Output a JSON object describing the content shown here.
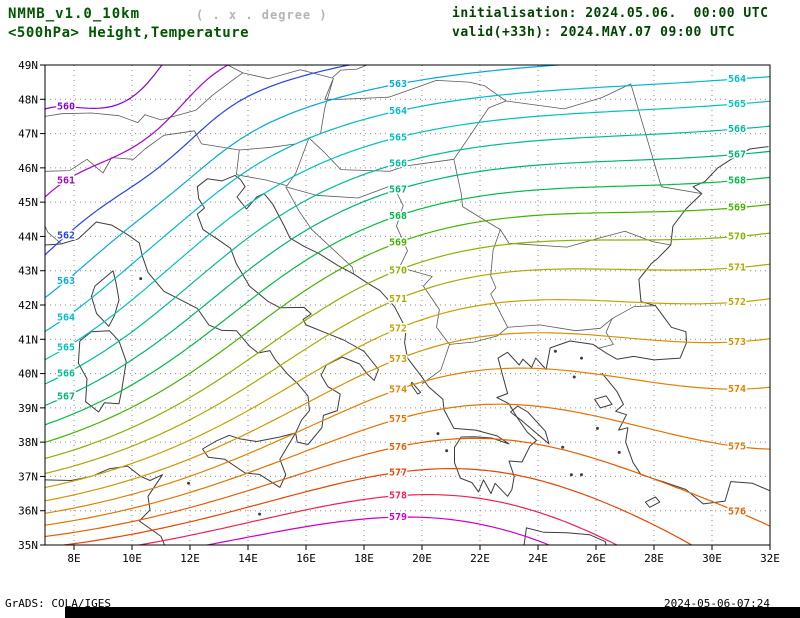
{
  "header": {
    "model": "NMMB_v1.0_10km",
    "resolution_note": "( . x . degree )",
    "title": "<500hPa> Height,Temperature",
    "init": "initialisation: 2024.05.06.  00:00 UTC",
    "valid": "valid(+33h): 2024.MAY.07 09:00 UTC"
  },
  "footer": {
    "left": "GrADS: COLA/IGES",
    "right": "2024-05-06-07:24"
  },
  "chart_data": {
    "type": "contour",
    "field": "500 hPa geopotential height",
    "title": "<500hPa> Height,Temperature",
    "levels": [
      560,
      561,
      562,
      563,
      564,
      565,
      566,
      567,
      568,
      569,
      570,
      571,
      572,
      573,
      574,
      575,
      576,
      577,
      578,
      579
    ],
    "level_colors": [
      "#8800dd",
      "#aa00cc",
      "#2244ee",
      "#00aadd",
      "#00bbcc",
      "#00c4b4",
      "#00bb99",
      "#00b377",
      "#00bb44",
      "#44b300",
      "#88b300",
      "#aaaa00",
      "#c4a300",
      "#d49200",
      "#e08200",
      "#e57300",
      "#e55f00",
      "#e54400",
      "#ee2255",
      "#cc00cc"
    ],
    "lat_ticks": [
      "49N",
      "48N",
      "47N",
      "46N",
      "45N",
      "44N",
      "43N",
      "42N",
      "41N",
      "40N",
      "39N",
      "38N",
      "37N",
      "36N",
      "35N"
    ],
    "lon_ticks": [
      "8E",
      "10E",
      "12E",
      "14E",
      "16E",
      "18E",
      "20E",
      "22E",
      "24E",
      "26E",
      "28E",
      "30E",
      "32E"
    ],
    "lat_range": [
      35,
      49
    ],
    "lon_range": [
      7,
      32
    ],
    "grid": "dotted",
    "pattern": "heights increase from 560 dam over the northwest to 579 dam over the south-central Mediterranean"
  }
}
